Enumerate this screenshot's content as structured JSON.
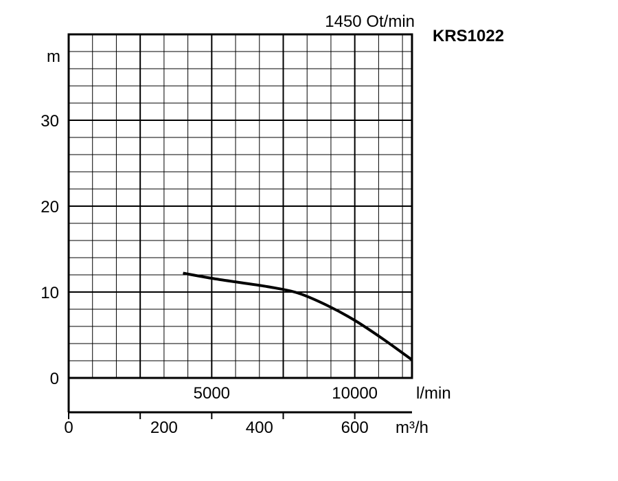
{
  "chart_data": {
    "type": "line",
    "title": "KRS1022",
    "speed_label": "1450 Ot/min",
    "ylabel": "m",
    "ylim": [
      0,
      40
    ],
    "y_ticks": [
      {
        "value": 0,
        "label": "0"
      },
      {
        "value": 10,
        "label": "10"
      },
      {
        "value": 20,
        "label": "20"
      },
      {
        "value": 30,
        "label": "30"
      }
    ],
    "x_lmin": {
      "unit": "l/min",
      "ticks": [
        {
          "value": 5000,
          "label": "5000"
        },
        {
          "value": 10000,
          "label": "10000"
        }
      ]
    },
    "x_m3h": {
      "unit": "m³/h",
      "xlim": [
        0,
        720
      ],
      "ticks": [
        {
          "value": 0,
          "label": "0"
        },
        {
          "value": 200,
          "label": "200"
        },
        {
          "value": 400,
          "label": "400"
        },
        {
          "value": 600,
          "label": "600"
        }
      ]
    },
    "grid": true,
    "series": [
      {
        "x": [
          240,
          300,
          360,
          420,
          480,
          540,
          600,
          660,
          720
        ],
        "values": [
          12.2,
          11.6,
          11.1,
          10.6,
          9.9,
          8.5,
          6.7,
          4.5,
          2.1
        ]
      }
    ]
  }
}
